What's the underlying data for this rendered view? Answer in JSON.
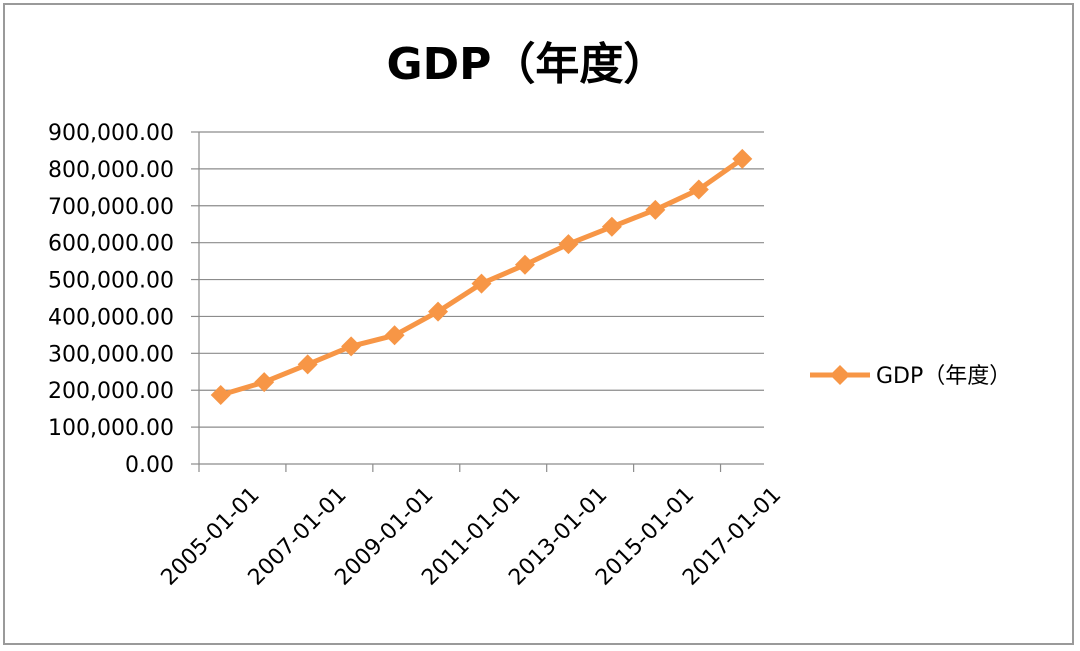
{
  "chart_data": {
    "type": "line",
    "title": "GDP（年度）",
    "xlabel": "",
    "ylabel": "",
    "x": [
      "2005-01-01",
      "2006-01-01",
      "2007-01-01",
      "2008-01-01",
      "2009-01-01",
      "2010-01-01",
      "2011-01-01",
      "2012-01-01",
      "2013-01-01",
      "2014-01-01",
      "2015-01-01",
      "2016-01-01",
      "2017-01-01"
    ],
    "x_tick_labels": [
      "2005-01-01",
      "2007-01-01",
      "2009-01-01",
      "2011-01-01",
      "2013-01-01",
      "2015-01-01",
      "2017-01-01"
    ],
    "y_tick_labels": [
      "0.00",
      "100,000.00",
      "200,000.00",
      "300,000.00",
      "400,000.00",
      "500,000.00",
      "600,000.00",
      "700,000.00",
      "800,000.00",
      "900,000.00"
    ],
    "ylim": [
      0,
      900000
    ],
    "y_ticks": [
      0,
      100000,
      200000,
      300000,
      400000,
      500000,
      600000,
      700000,
      800000,
      900000
    ],
    "grid": "horizontal",
    "legend_position": "right",
    "series": [
      {
        "name": "GDP（年度）",
        "color": "#f79646",
        "marker": "diamond",
        "values": [
          187000,
          222000,
          270000,
          319000,
          349000,
          413000,
          489000,
          540000,
          596000,
          643000,
          689000,
          744000,
          827000
        ]
      }
    ]
  }
}
